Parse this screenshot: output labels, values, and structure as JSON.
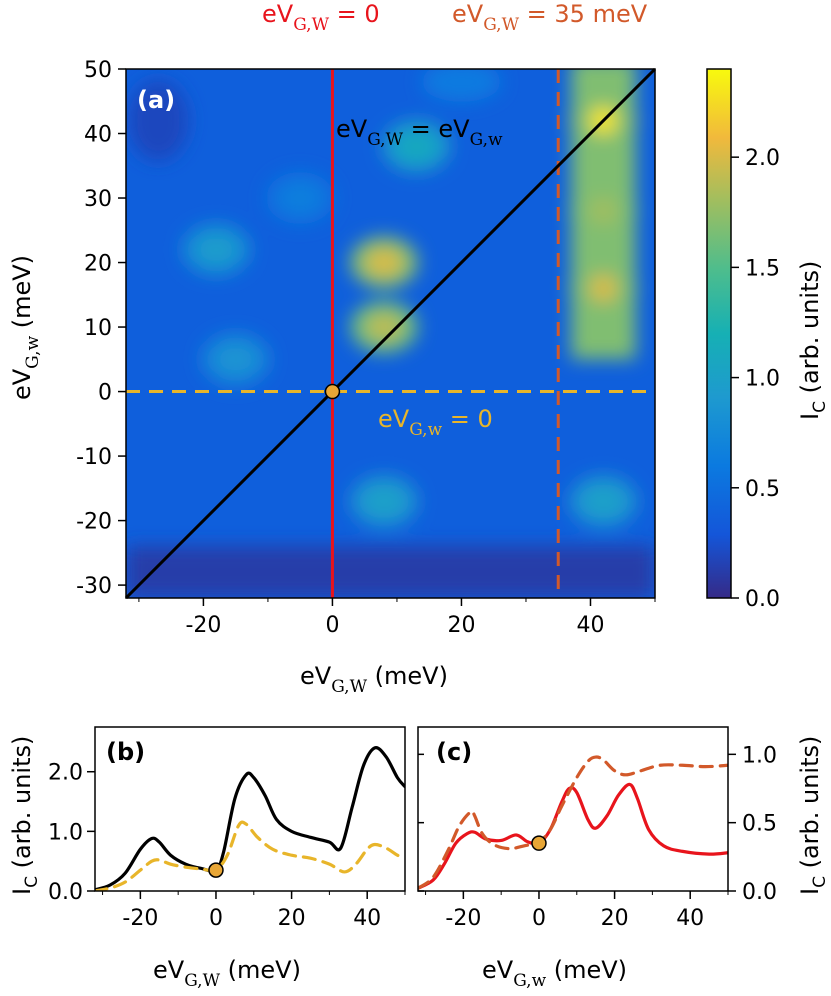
{
  "colors": {
    "red": "#e8141c",
    "orange": "#d2592a",
    "gold": "#e8b52a",
    "black": "#000000",
    "marker_fill": "#e8a636"
  },
  "top_labels": {
    "red_prefix": "eV",
    "red_sub": "G,W",
    "red_suffix": " = 0",
    "orange_prefix": "eV",
    "orange_sub": "G,W",
    "orange_suffix": " = 35 meV"
  },
  "chart_data": [
    {
      "id": "a",
      "type": "heatmap",
      "panel_label": "(a)",
      "xlabel_main": "eV",
      "xlabel_sub": "G,W",
      "xlabel_unit": " (meV)",
      "ylabel_main": "eV",
      "ylabel_sub": "G,w",
      "ylabel_unit": " (meV)",
      "xlim": [
        -32,
        50
      ],
      "ylim": [
        -32,
        50
      ],
      "xticks": [
        -20,
        0,
        20,
        40
      ],
      "yticks": [
        -30,
        -20,
        -10,
        0,
        10,
        20,
        30,
        40,
        50
      ],
      "colorbar": {
        "range": [
          0,
          2.4
        ],
        "ticks": [
          "0.0",
          "0.5",
          "1.0",
          "1.5",
          "2.0"
        ],
        "tick_values": [
          0,
          0.5,
          1.0,
          1.5,
          2.0
        ],
        "label_main": "I",
        "label_sub": "C",
        "label_rest": " (arb. units)",
        "colormap": "parula"
      },
      "annotations": {
        "diagonal_lhs": "eV",
        "diagonal_lhs_sub": "G,W",
        "diagonal_eq": " = eV",
        "diagonal_rhs_sub": "G,w",
        "horizontal_main": "eV",
        "horizontal_sub": "G,w",
        "horizontal_rest": " = 0"
      },
      "lines": [
        {
          "kind": "vertical",
          "x": 0,
          "style": "solid",
          "color": "red"
        },
        {
          "kind": "vertical",
          "x": 35,
          "style": "dashed",
          "color": "orange"
        },
        {
          "kind": "horizontal",
          "y": 0,
          "style": "dashed",
          "color": "gold"
        },
        {
          "kind": "diagonal",
          "from": [
            -32,
            -32
          ],
          "to": [
            50,
            50
          ],
          "style": "solid",
          "color": "black"
        }
      ],
      "marker": {
        "x": 0,
        "y": 0
      },
      "peaks": [
        {
          "x": 42,
          "y": 42,
          "value": 2.3
        },
        {
          "x": 42,
          "y": 16,
          "value": 2.0
        },
        {
          "x": 42,
          "y": 28,
          "value": 1.8
        },
        {
          "x": 8,
          "y": 20,
          "value": 2.0
        },
        {
          "x": 8,
          "y": 10,
          "value": 1.9
        },
        {
          "x": 13,
          "y": 38,
          "value": 1.1
        },
        {
          "x": -18,
          "y": 22,
          "value": 0.95
        },
        {
          "x": -15,
          "y": 5,
          "value": 0.85
        },
        {
          "x": 8,
          "y": -17,
          "value": 1.0
        },
        {
          "x": 42,
          "y": -17,
          "value": 1.0
        },
        {
          "x": -5,
          "y": 30,
          "value": 0.65
        }
      ]
    },
    {
      "id": "b",
      "type": "line",
      "panel_label": "(b)",
      "xlabel_main": "eV",
      "xlabel_sub": "G,W",
      "xlabel_unit": " (meV)",
      "ylabel_main": "I",
      "ylabel_sub": "C",
      "ylabel_rest": " (arb. units)",
      "xlim": [
        -32,
        50
      ],
      "ylim": [
        0,
        2.75
      ],
      "xticks": [
        -20,
        0,
        20,
        40
      ],
      "yticks": [
        0.0,
        1.0,
        2.0
      ],
      "ytick_labels": [
        "0.0",
        "1.0",
        "2.0"
      ],
      "marker": {
        "x": 0,
        "y": 0.35
      },
      "series": [
        {
          "color": "black",
          "style": "solid",
          "x": [
            -32,
            -28,
            -24,
            -20,
            -17,
            -15,
            -12,
            -8,
            -4,
            0,
            2,
            5,
            8,
            10,
            13,
            16,
            20,
            25,
            30,
            33,
            36,
            39,
            42,
            45,
            48,
            50
          ],
          "y": [
            0.02,
            0.1,
            0.3,
            0.7,
            0.88,
            0.82,
            0.6,
            0.45,
            0.38,
            0.35,
            0.65,
            1.55,
            1.95,
            1.9,
            1.6,
            1.2,
            1.0,
            0.9,
            0.82,
            0.72,
            1.4,
            2.1,
            2.4,
            2.25,
            1.9,
            1.75
          ]
        },
        {
          "color": "gold",
          "style": "dashed",
          "x": [
            -32,
            -28,
            -24,
            -20,
            -17,
            -15,
            -12,
            -8,
            -4,
            0,
            3,
            6,
            8,
            11,
            15,
            20,
            25,
            30,
            34,
            37,
            40,
            42,
            45,
            48,
            50
          ],
          "y": [
            0.0,
            0.05,
            0.15,
            0.35,
            0.5,
            0.52,
            0.45,
            0.4,
            0.37,
            0.36,
            0.6,
            1.1,
            1.12,
            0.9,
            0.7,
            0.6,
            0.55,
            0.45,
            0.32,
            0.45,
            0.7,
            0.78,
            0.72,
            0.6,
            0.55
          ]
        }
      ]
    },
    {
      "id": "c",
      "type": "line",
      "panel_label": "(c)",
      "xlabel_main": "eV",
      "xlabel_sub": "G,w",
      "xlabel_unit": " (meV)",
      "ylabel_main": "I",
      "ylabel_sub": "C",
      "ylabel_rest": " (arb. units)",
      "xlim": [
        -32,
        50
      ],
      "ylim": [
        0,
        1.2
      ],
      "xticks": [
        -20,
        0,
        20,
        40
      ],
      "yticks": [
        0.0,
        0.5,
        1.0
      ],
      "ytick_labels": [
        "0.0",
        "0.5",
        "1.0"
      ],
      "marker": {
        "x": 0,
        "y": 0.35
      },
      "series": [
        {
          "color": "red",
          "style": "solid",
          "x": [
            -32,
            -28,
            -25,
            -22,
            -19,
            -17,
            -14,
            -10,
            -6,
            -3,
            0,
            3,
            6,
            8,
            10,
            13,
            15,
            18,
            21,
            24,
            26,
            29,
            33,
            38,
            45,
            50
          ],
          "y": [
            0.02,
            0.08,
            0.2,
            0.35,
            0.42,
            0.43,
            0.38,
            0.37,
            0.41,
            0.36,
            0.35,
            0.45,
            0.65,
            0.75,
            0.72,
            0.52,
            0.46,
            0.55,
            0.7,
            0.78,
            0.68,
            0.45,
            0.33,
            0.29,
            0.27,
            0.28
          ]
        },
        {
          "color": "orange",
          "style": "dashed",
          "x": [
            -32,
            -28,
            -24,
            -21,
            -18,
            -17,
            -15,
            -12,
            -8,
            -4,
            0,
            3,
            6,
            10,
            13,
            15,
            17,
            20,
            23,
            27,
            32,
            38,
            44,
            50
          ],
          "y": [
            0.02,
            0.1,
            0.3,
            0.48,
            0.58,
            0.55,
            0.42,
            0.34,
            0.31,
            0.33,
            0.36,
            0.45,
            0.62,
            0.83,
            0.95,
            0.98,
            0.96,
            0.88,
            0.85,
            0.88,
            0.92,
            0.92,
            0.91,
            0.92
          ]
        }
      ]
    }
  ]
}
